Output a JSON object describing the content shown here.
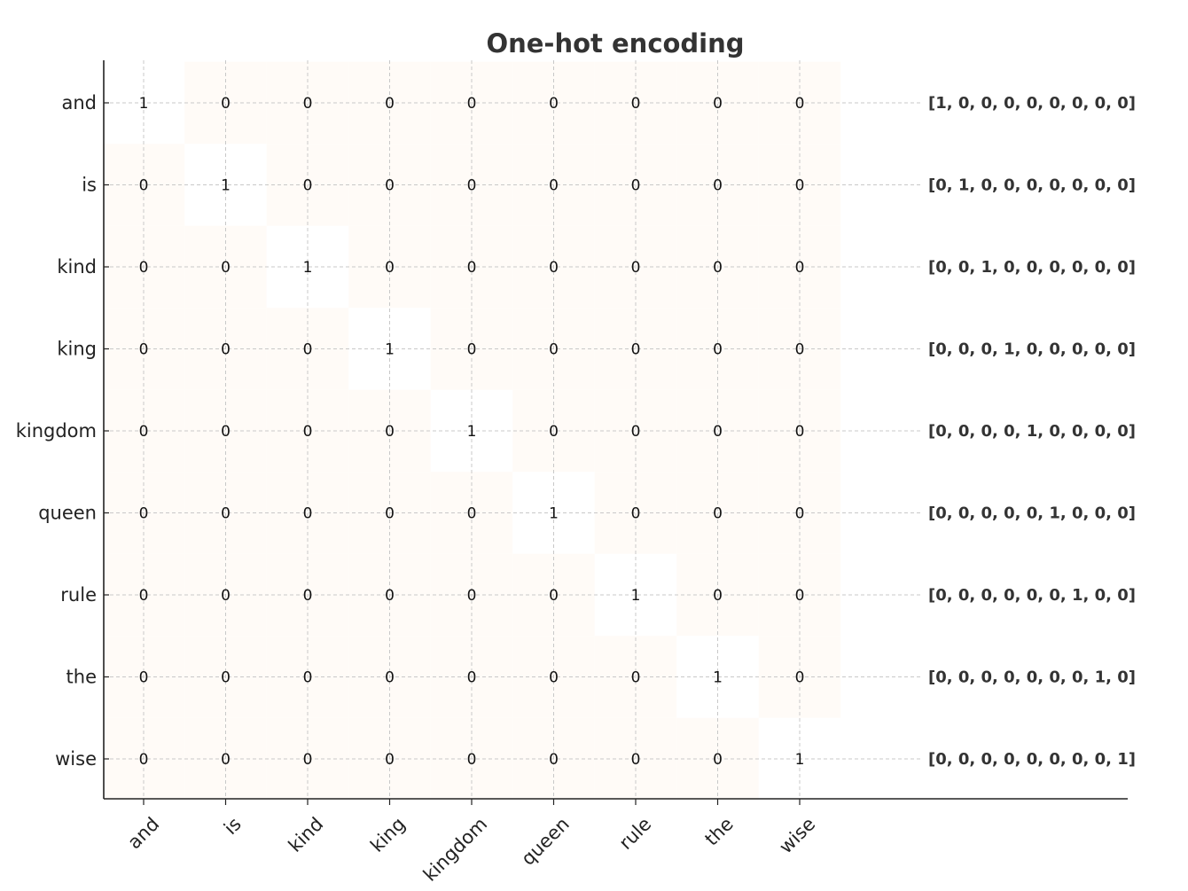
{
  "chart_data": {
    "type": "heatmap",
    "title": "One-hot encoding",
    "xlabel": "",
    "ylabel": "",
    "rows": [
      "and",
      "is",
      "kind",
      "king",
      "kingdom",
      "queen",
      "rule",
      "the",
      "wise"
    ],
    "columns": [
      "and",
      "is",
      "kind",
      "king",
      "kingdom",
      "queen",
      "rule",
      "the",
      "wise"
    ],
    "values": [
      [
        1,
        0,
        0,
        0,
        0,
        0,
        0,
        0,
        0
      ],
      [
        0,
        1,
        0,
        0,
        0,
        0,
        0,
        0,
        0
      ],
      [
        0,
        0,
        1,
        0,
        0,
        0,
        0,
        0,
        0
      ],
      [
        0,
        0,
        0,
        1,
        0,
        0,
        0,
        0,
        0
      ],
      [
        0,
        0,
        0,
        0,
        1,
        0,
        0,
        0,
        0
      ],
      [
        0,
        0,
        0,
        0,
        0,
        1,
        0,
        0,
        0
      ],
      [
        0,
        0,
        0,
        0,
        0,
        0,
        1,
        0,
        0
      ],
      [
        0,
        0,
        0,
        0,
        0,
        0,
        0,
        1,
        0
      ],
      [
        0,
        0,
        0,
        0,
        0,
        0,
        0,
        0,
        1
      ]
    ],
    "row_vectors": [
      "[1, 0, 0, 0, 0, 0, 0, 0, 0]",
      "[0, 1, 0, 0, 0, 0, 0, 0, 0]",
      "[0, 0, 1, 0, 0, 0, 0, 0, 0]",
      "[0, 0, 0, 1, 0, 0, 0, 0, 0]",
      "[0, 0, 0, 0, 1, 0, 0, 0, 0]",
      "[0, 0, 0, 0, 0, 1, 0, 0, 0]",
      "[0, 0, 0, 0, 0, 0, 1, 0, 0]",
      "[0, 0, 0, 0, 0, 0, 0, 1, 0]",
      "[0, 0, 0, 0, 0, 0, 0, 0, 1]"
    ],
    "grid": true,
    "colors": {
      "one": "#ffffff",
      "zero": "#fffbf7",
      "grid": "#c8c8c8",
      "axis": "#222222",
      "title": "#333333"
    }
  }
}
